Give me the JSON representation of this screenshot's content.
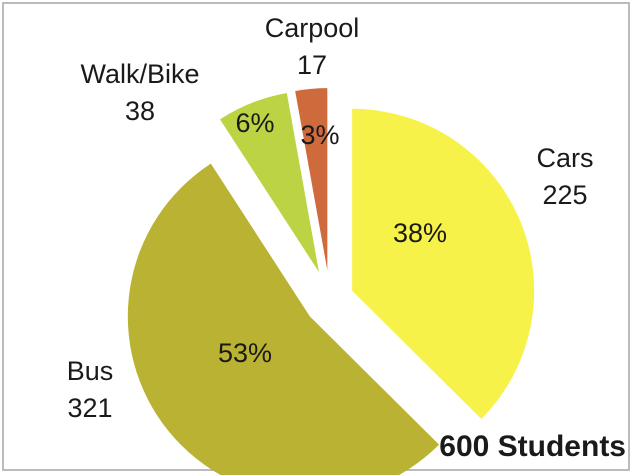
{
  "chart_data": {
    "type": "pie",
    "annotation": "600 Students",
    "categories": [
      "Cars",
      "Bus",
      "Walk/Bike",
      "Carpool"
    ],
    "values": [
      225,
      321,
      38,
      17
    ],
    "percent_labels": [
      "38%",
      "53%",
      "6%",
      "3%"
    ],
    "colors": [
      "#f7f24a",
      "#b9b232",
      "#bcd443",
      "#cf6a3c"
    ]
  }
}
